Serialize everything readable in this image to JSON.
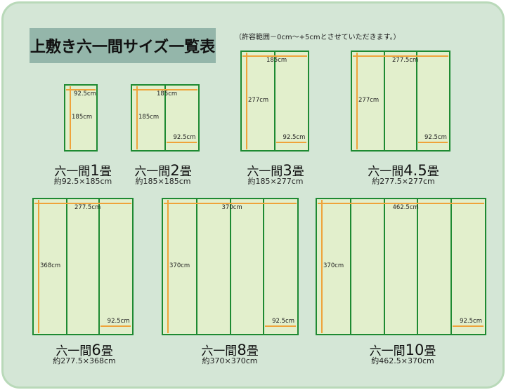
{
  "title": "上敷き六一間サイズ一覧表",
  "note": "（許容範囲－0cm～+5cmとさせていただきます。）",
  "colors": {
    "background": "#d4e6d6",
    "mat_fill": "#e2efcc",
    "mat_border": "#1e8a32",
    "arrow": "#efa33a",
    "title_box": "#94b6aa"
  },
  "items": [
    {
      "prefix": "六一間",
      "number": "1",
      "suffix": "畳",
      "size": "約92.5×185cm",
      "panels": 1,
      "width_label": "92.5cm",
      "height_label": "185cm",
      "panel_label": ""
    },
    {
      "prefix": "六一間",
      "number": "2",
      "suffix": "畳",
      "size": "約185×185cm",
      "panels": 2,
      "width_label": "185cm",
      "height_label": "185cm",
      "panel_label": "92.5cm"
    },
    {
      "prefix": "六一間",
      "number": "3",
      "suffix": "畳",
      "size": "約185×277cm",
      "panels": 2,
      "width_label": "185cm",
      "height_label": "277cm",
      "panel_label": "92.5cm"
    },
    {
      "prefix": "六一間",
      "number": "4.5",
      "suffix": "畳",
      "size": "約277.5×277cm",
      "panels": 3,
      "width_label": "277.5cm",
      "height_label": "277cm",
      "panel_label": "92.5cm"
    },
    {
      "prefix": "六一間",
      "number": "6",
      "suffix": "畳",
      "size": "約277.5×368cm",
      "panels": 3,
      "width_label": "277.5cm",
      "height_label": "368cm",
      "panel_label": "92.5cm"
    },
    {
      "prefix": "六一間",
      "number": "8",
      "suffix": "畳",
      "size": "約370×370cm",
      "panels": 4,
      "width_label": "370cm",
      "height_label": "370cm",
      "panel_label": "92.5cm"
    },
    {
      "prefix": "六一間",
      "number": "10",
      "suffix": "畳",
      "size": "約462.5×370cm",
      "panels": 5,
      "width_label": "462.5cm",
      "height_label": "370cm",
      "panel_label": "92.5cm"
    }
  ]
}
